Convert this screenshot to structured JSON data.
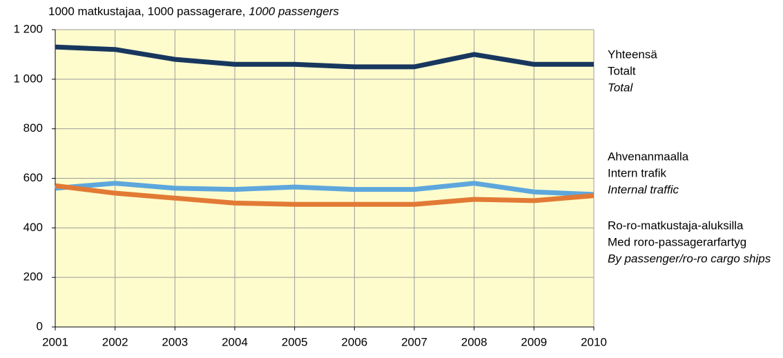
{
  "chart_data": {
    "type": "line",
    "title": [
      "1000 matkustajaa, 1000 passagerare,",
      "1000 passengers"
    ],
    "x": [
      2001,
      2002,
      2003,
      2004,
      2005,
      2006,
      2007,
      2008,
      2009,
      2010
    ],
    "xlim": [
      2001,
      2010
    ],
    "xticks": [
      2001,
      2002,
      2003,
      2004,
      2005,
      2006,
      2007,
      2008,
      2009,
      2010
    ],
    "ylim": [
      0,
      1200
    ],
    "yticks": [
      0,
      200,
      400,
      600,
      800,
      {
        "value": 1000,
        "label": "1 000"
      },
      {
        "value": 1200,
        "label": "1 200"
      }
    ],
    "grid": true,
    "series": [
      {
        "name": [
          "Yhteensä",
          "Totalt",
          "Total"
        ],
        "color": "#17375e",
        "values": [
          1130,
          1120,
          1080,
          1060,
          1060,
          1050,
          1050,
          1100,
          1060,
          1060
        ]
      },
      {
        "name": [
          "Ahvenanmaalla",
          "Intern trafik",
          "Internal traffic"
        ],
        "color": "#5ea7dd",
        "values": [
          560,
          580,
          560,
          555,
          565,
          555,
          555,
          580,
          545,
          535
        ]
      },
      {
        "name": [
          "Ro-ro-matkustaja-aluksilla",
          "Med roro-passagerarfartyg",
          "By passenger/ro-ro cargo ships"
        ],
        "color": "#e27a35",
        "values": [
          570,
          540,
          520,
          500,
          495,
          495,
          495,
          515,
          510,
          530
        ]
      }
    ]
  }
}
